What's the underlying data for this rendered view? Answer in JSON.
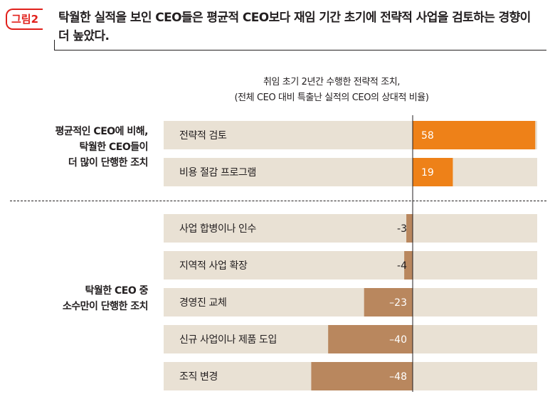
{
  "figure": {
    "label": "그림2",
    "title": "탁월한 실적을 보인 CEO들은 평균적 CEO보다 재임 기간 초기에 전략적 사업을 검토하는 경향이 더 높았다."
  },
  "chart_data": {
    "type": "bar",
    "orientation": "horizontal",
    "subtitle_line1": "취임 초기 2년간 수행한 전략적 조치,",
    "subtitle_line2": "(전체 CEO 대비 특출난 실적의 CEO의 상대적 비율)",
    "groups": [
      {
        "label_lines": [
          "평균적인 CEO에 비해,",
          "탁월한 CEO들이",
          "더 많이 단행한 조치"
        ],
        "bars": [
          {
            "category": "전략적 검토",
            "value": 58,
            "label": "58"
          },
          {
            "category": "비용 절감 프로그램",
            "value": 19,
            "label": "19"
          }
        ]
      },
      {
        "label_lines": [
          "탁월한 CEO 중",
          "소수만이 단행한 조치"
        ],
        "bars": [
          {
            "category": "사업 합병이나 인수",
            "value": -3,
            "label": "-3"
          },
          {
            "category": "지역적 사업 확장",
            "value": -4,
            "label": "-4"
          },
          {
            "category": "경영진 교체",
            "value": -23,
            "label": "–23"
          },
          {
            "category": "신규 사업이나 제품 도입",
            "value": -40,
            "label": "–40"
          },
          {
            "category": "조직 변경",
            "value": -48,
            "label": "–48"
          }
        ]
      }
    ],
    "colors": {
      "positive": "#ee8118",
      "negative": "#b9875e",
      "track": "#e9e1d4",
      "axis": "#231f20"
    }
  }
}
